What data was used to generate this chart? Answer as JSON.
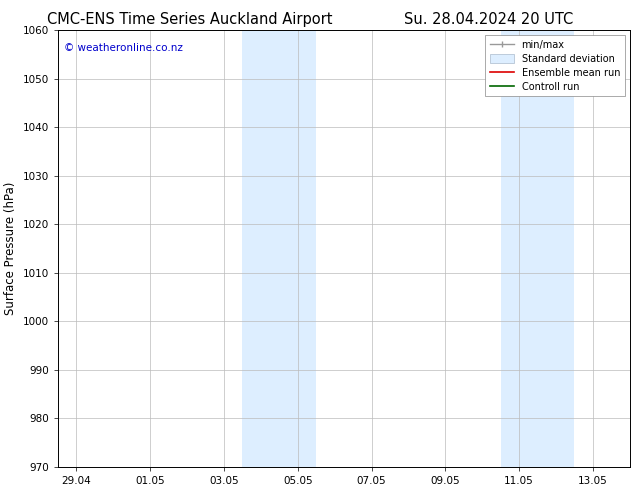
{
  "title_left": "CMC-ENS Time Series Auckland Airport",
  "title_right": "Su. 28.04.2024 20 UTC",
  "ylabel": "Surface Pressure (hPa)",
  "watermark": "© weatheronline.co.nz",
  "watermark_color": "#0000cc",
  "ylim": [
    970,
    1060
  ],
  "yticks": [
    970,
    980,
    990,
    1000,
    1010,
    1020,
    1030,
    1040,
    1050,
    1060
  ],
  "xtick_labels": [
    "29.04",
    "01.05",
    "03.05",
    "05.05",
    "07.05",
    "09.05",
    "11.05",
    "13.05"
  ],
  "xtick_positions": [
    0,
    2,
    4,
    6,
    8,
    10,
    12,
    14
  ],
  "xlim": [
    -0.5,
    15.0
  ],
  "shaded_bands": [
    {
      "x_start": 4.5,
      "x_end": 5.5
    },
    {
      "x_start": 5.5,
      "x_end": 6.5
    },
    {
      "x_start": 11.5,
      "x_end": 12.5
    },
    {
      "x_start": 12.5,
      "x_end": 13.5
    }
  ],
  "shaded_color": "#ddeeff",
  "bg_color": "#ffffff",
  "grid_color": "#bbbbbb",
  "total_days": 15.5,
  "title_fontsize": 10.5,
  "label_fontsize": 8.5,
  "tick_fontsize": 7.5
}
